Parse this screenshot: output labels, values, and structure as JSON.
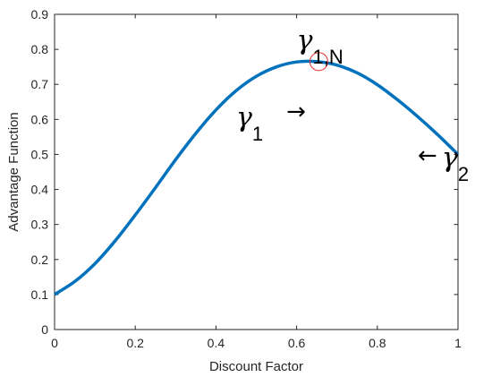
{
  "chart_data": {
    "type": "line",
    "title": "",
    "xlabel": "Discount Factor",
    "ylabel": "Advantage Function",
    "xlim": [
      0,
      1
    ],
    "ylim": [
      0,
      0.9
    ],
    "xticks": [
      0,
      0.2,
      0.4,
      0.6,
      0.8,
      1
    ],
    "yticks": [
      0,
      0.1,
      0.2,
      0.3,
      0.4,
      0.5,
      0.6,
      0.7,
      0.8,
      0.9
    ],
    "xtick_labels": [
      "0",
      "0.2",
      "0.4",
      "0.6",
      "0.8",
      "1"
    ],
    "ytick_labels": [
      "0",
      "0.1",
      "0.2",
      "0.3",
      "0.4",
      "0.5",
      "0.6",
      "0.7",
      "0.8",
      "0.9"
    ],
    "grid": false,
    "series": [
      {
        "color": "#0072BD",
        "x": [
          0,
          0.05,
          0.1,
          0.15,
          0.2,
          0.25,
          0.3,
          0.35,
          0.4,
          0.45,
          0.5,
          0.55,
          0.6,
          0.65,
          0.7,
          0.75,
          0.8,
          0.85,
          0.9,
          0.95,
          1
        ],
        "y": [
          0.1,
          0.137,
          0.188,
          0.253,
          0.327,
          0.405,
          0.485,
          0.56,
          0.627,
          0.682,
          0.723,
          0.75,
          0.764,
          0.765,
          0.755,
          0.733,
          0.699,
          0.656,
          0.608,
          0.556,
          0.5
        ]
      }
    ],
    "marker": {
      "x": 0.655,
      "y": 0.765,
      "color": "#e03030"
    },
    "annotations": [
      {
        "id": "gamma-1n",
        "symbol": "γ",
        "sub": "1,N",
        "x": 0.6,
        "y": 0.8
      },
      {
        "id": "gamma-1",
        "symbol": "γ",
        "sub": "1",
        "arrow": "→",
        "x": 0.45,
        "y": 0.58
      },
      {
        "id": "gamma-2",
        "symbol": "γ",
        "sub": "2",
        "arrow": "←",
        "x": 0.9,
        "y": 0.465
      }
    ]
  }
}
